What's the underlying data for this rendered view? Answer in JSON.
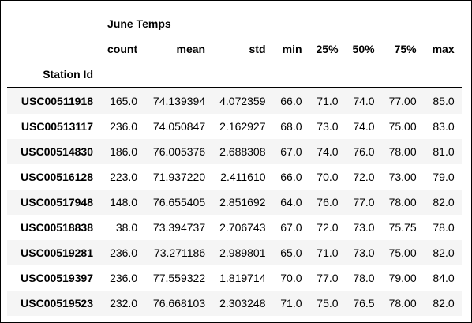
{
  "table": {
    "group_header": "June Temps",
    "index_name": "Station Id",
    "columns": [
      "count",
      "mean",
      "std",
      "min",
      "25%",
      "50%",
      "75%",
      "max"
    ],
    "rows": [
      {
        "station": "USC00511918",
        "values": [
          "165.0",
          "74.139394",
          "4.072359",
          "66.0",
          "71.0",
          "74.0",
          "77.00",
          "85.0"
        ]
      },
      {
        "station": "USC00513117",
        "values": [
          "236.0",
          "74.050847",
          "2.162927",
          "68.0",
          "73.0",
          "74.0",
          "75.00",
          "83.0"
        ]
      },
      {
        "station": "USC00514830",
        "values": [
          "186.0",
          "76.005376",
          "2.688308",
          "67.0",
          "74.0",
          "76.0",
          "78.00",
          "81.0"
        ]
      },
      {
        "station": "USC00516128",
        "values": [
          "223.0",
          "71.937220",
          "2.411610",
          "66.0",
          "70.0",
          "72.0",
          "73.00",
          "79.0"
        ]
      },
      {
        "station": "USC00517948",
        "values": [
          "148.0",
          "76.655405",
          "2.851692",
          "64.0",
          "76.0",
          "77.0",
          "78.00",
          "82.0"
        ]
      },
      {
        "station": "USC00518838",
        "values": [
          "38.0",
          "73.394737",
          "2.706743",
          "67.0",
          "72.0",
          "73.0",
          "75.75",
          "78.0"
        ]
      },
      {
        "station": "USC00519281",
        "values": [
          "236.0",
          "73.271186",
          "2.989801",
          "65.0",
          "71.0",
          "73.0",
          "75.00",
          "82.0"
        ]
      },
      {
        "station": "USC00519397",
        "values": [
          "236.0",
          "77.559322",
          "1.819714",
          "70.0",
          "77.0",
          "78.0",
          "79.00",
          "84.0"
        ]
      },
      {
        "station": "USC00519523",
        "values": [
          "232.0",
          "76.668103",
          "2.303248",
          "71.0",
          "75.0",
          "76.5",
          "78.00",
          "82.0"
        ]
      }
    ]
  },
  "colors": {
    "stripe": "#f5f5f5",
    "border": "#000000",
    "background": "#ffffff"
  }
}
